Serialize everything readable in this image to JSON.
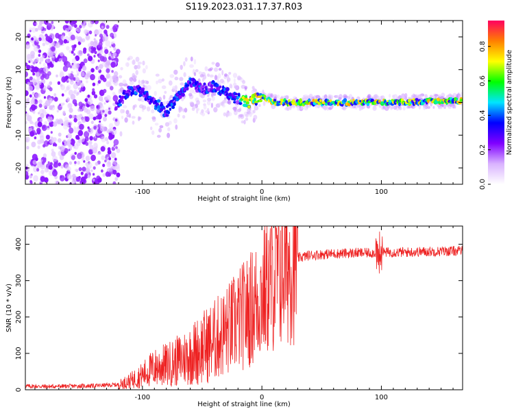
{
  "title": "S119.2023.031.17.37.R03",
  "chart_data": [
    {
      "type": "heatmap",
      "xlabel": "Height of straight line (km)",
      "ylabel": "Frequency (Hz)",
      "xlim": [
        -198,
        168
      ],
      "ylim": [
        -25,
        25
      ],
      "xticks": [
        -100,
        0,
        100
      ],
      "yticks": [
        -20,
        -10,
        0,
        10,
        20
      ],
      "grid": false,
      "colorbar": {
        "label": "Normalized spectral amplitude",
        "range": [
          0,
          0.95
        ],
        "ticks": [
          0.0,
          0.2,
          0.4,
          0.6,
          0.8
        ],
        "colormap": [
          "#ffffff",
          "#d9b3ff",
          "#8000ff",
          "#0000ff",
          "#00e5ff",
          "#00ff00",
          "#ffff00",
          "#ff8000",
          "#ff0060"
        ]
      },
      "ridge": {
        "x": [
          -198,
          -160,
          -120,
          -110,
          -100,
          -90,
          -80,
          -70,
          -60,
          -50,
          -40,
          -30,
          -20,
          -10,
          0,
          10,
          20,
          50,
          100,
          168
        ],
        "center_hz": [
          0,
          0,
          0,
          4,
          3,
          0,
          -3,
          2,
          6,
          4,
          5,
          3,
          1,
          0,
          2,
          0,
          0,
          0,
          0,
          0.5
        ]
      }
    },
    {
      "type": "line",
      "xlabel": "Height of straight line (km)",
      "ylabel": "SNR (10 * v/v)",
      "xlim": [
        -198,
        168
      ],
      "ylim": [
        0,
        450
      ],
      "xticks": [
        -100,
        0,
        100
      ],
      "yticks": [
        0,
        100,
        200,
        300,
        400
      ],
      "grid": false,
      "series": [
        {
          "color": "#ee2222",
          "x": [
            -198,
            -180,
            -160,
            -140,
            -120,
            -110,
            -100,
            -95,
            -90,
            -85,
            -80,
            -75,
            -70,
            -65,
            -60,
            -55,
            -50,
            -45,
            -40,
            -35,
            -30,
            -25,
            -20,
            -15,
            -10,
            -5,
            0,
            5,
            10,
            15,
            20,
            25,
            30,
            40,
            50,
            60,
            80,
            90,
            100,
            110,
            120,
            140,
            168
          ],
          "y": [
            10,
            9,
            10,
            11,
            14,
            25,
            40,
            52,
            60,
            65,
            68,
            74,
            80,
            88,
            95,
            105,
            115,
            125,
            135,
            148,
            160,
            175,
            190,
            205,
            220,
            240,
            262,
            285,
            305,
            325,
            345,
            355,
            362,
            370,
            372,
            374,
            376,
            376,
            378,
            378,
            378,
            380,
            382
          ]
        }
      ]
    }
  ]
}
